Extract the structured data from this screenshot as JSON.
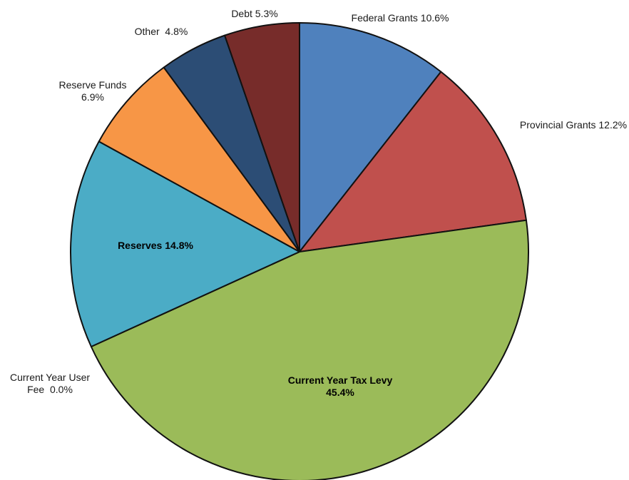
{
  "chart_data": {
    "type": "pie",
    "start_angle_deg": 0,
    "direction": "clockwise",
    "slices": [
      {
        "label": "Federal Grants",
        "value": 10.6,
        "value_text": "10.6%",
        "color": "#4F81BD",
        "bold": false,
        "label_lines": [
          "Federal Grants 10.6%"
        ]
      },
      {
        "label": "Provincial Grants",
        "value": 12.2,
        "value_text": "12.2%",
        "color": "#C0504D",
        "bold": false,
        "label_lines": [
          "Provincial Grants 12.2%"
        ]
      },
      {
        "label": "Current Year Tax Levy",
        "value": 45.4,
        "value_text": "45.4%",
        "color": "#9BBB59",
        "bold": true,
        "label_lines": [
          "Current Year Tax Levy",
          "45.4%"
        ]
      },
      {
        "label": "Current Year User Fee",
        "value": 0.0,
        "value_text": "0.0%",
        "color": "#8064A2",
        "bold": false,
        "label_lines": [
          "Current Year User",
          "Fee  0.0%"
        ]
      },
      {
        "label": "Reserves",
        "value": 14.8,
        "value_text": "14.8%",
        "color": "#4BACC6",
        "bold": true,
        "label_lines": [
          "Reserves 14.8%"
        ]
      },
      {
        "label": "Reserve Funds",
        "value": 6.9,
        "value_text": "6.9%",
        "color": "#F79646",
        "bold": false,
        "label_lines": [
          "Reserve Funds",
          "6.9%"
        ]
      },
      {
        "label": "Other",
        "value": 4.8,
        "value_text": "4.8%",
        "color": "#2C4D75",
        "bold": false,
        "label_lines": [
          "Other  4.8%"
        ]
      },
      {
        "label": "Debt",
        "value": 5.3,
        "value_text": "5.3%",
        "color": "#772C2A",
        "bold": false,
        "label_lines": [
          "Debt 5.3%"
        ]
      }
    ]
  }
}
